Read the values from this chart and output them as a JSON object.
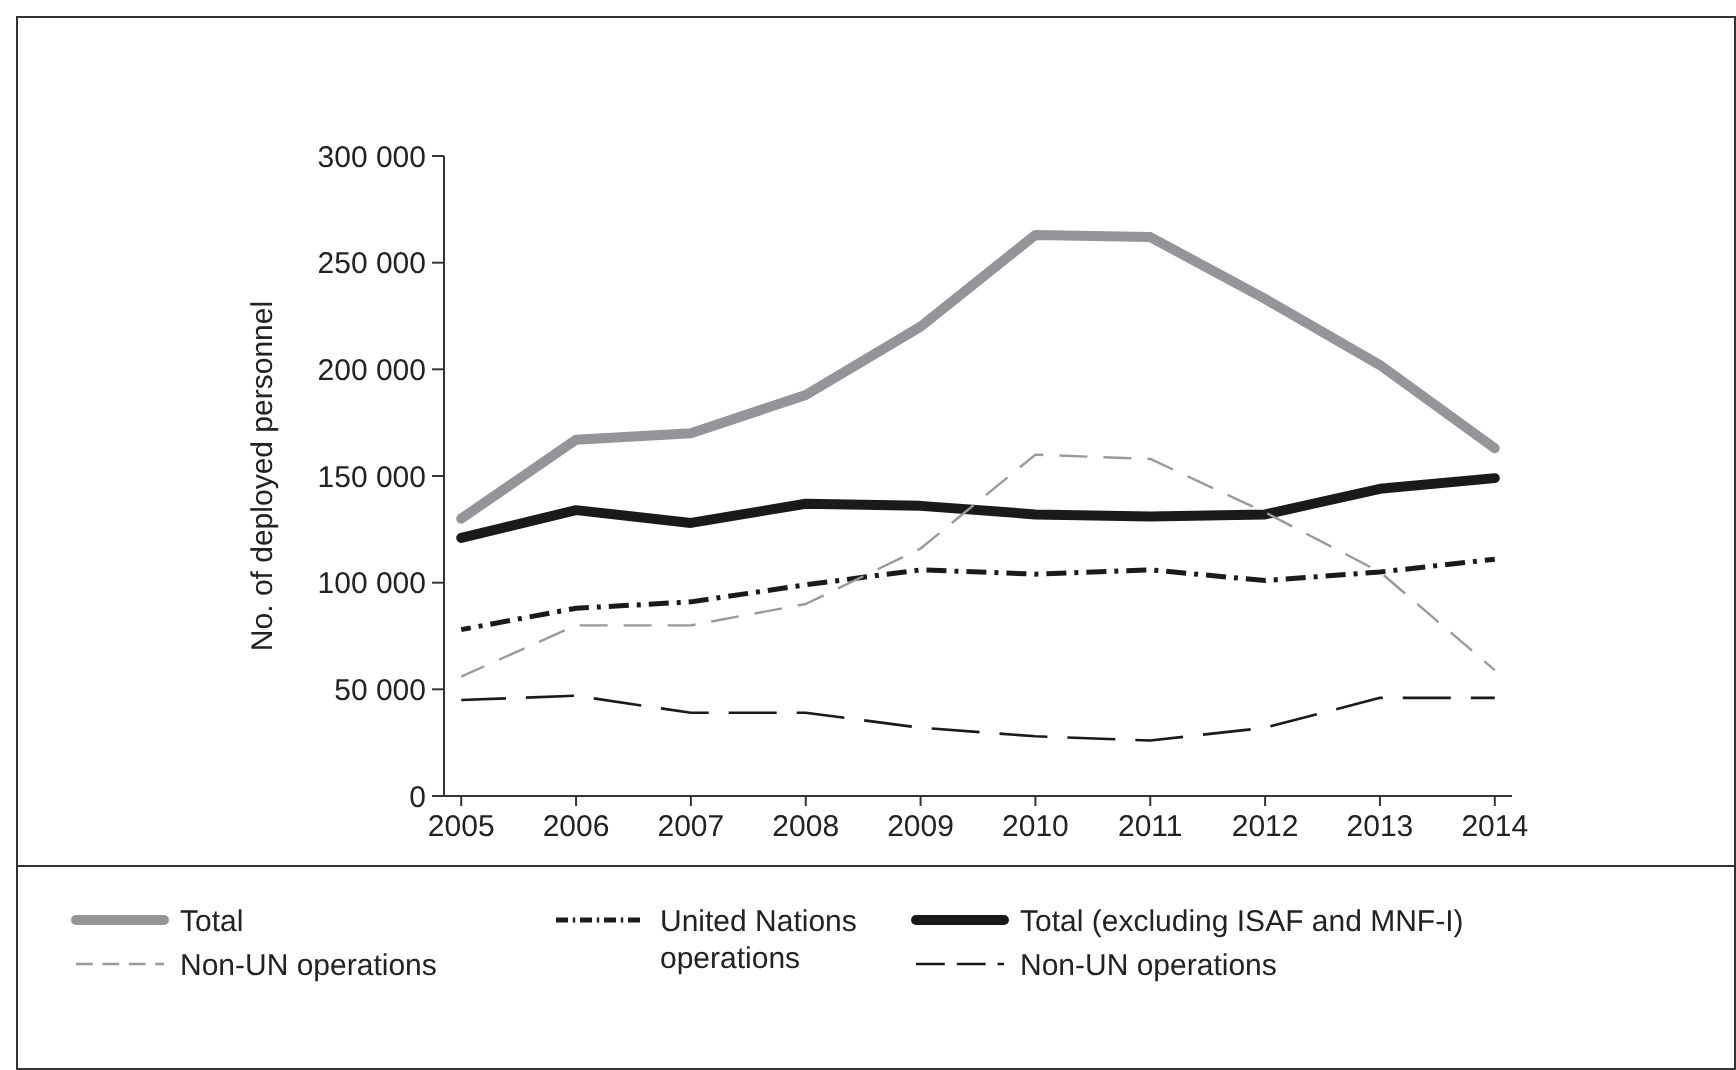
{
  "chart_data": {
    "type": "line",
    "ylabel": "No. of deployed personnel",
    "categories": [
      "2005",
      "2006",
      "2007",
      "2008",
      "2009",
      "2010",
      "2011",
      "2012",
      "2013",
      "2014"
    ],
    "ylim": [
      0,
      300000
    ],
    "yticks": [
      0,
      {
        "value": 50000,
        "label": "50 000"
      },
      {
        "value": 100000,
        "label": "100 000"
      },
      {
        "value": 150000,
        "label": "150 000"
      },
      {
        "value": 200000,
        "label": "200 000"
      },
      {
        "value": 250000,
        "label": "250 000"
      },
      {
        "value": 300000,
        "label": "300 000"
      }
    ],
    "grid": false,
    "legend": "bottom",
    "marker": "none",
    "series": [
      {
        "name": "Total",
        "color": "#939598",
        "line_style": "solid",
        "values": [
          130000,
          167000,
          170000,
          188000,
          220000,
          263000,
          262000,
          233000,
          202000,
          163000
        ]
      },
      {
        "name": "United Nations operations",
        "color": "#1a1a1a",
        "line_style": "dashdot",
        "values": [
          78000,
          88000,
          91000,
          99000,
          106000,
          104000,
          106000,
          101000,
          105000,
          111000
        ]
      },
      {
        "name": "Total (excluding ISAF and MNF-I)",
        "color": "#1a1a1a",
        "line_style": "solid",
        "values": [
          121000,
          134000,
          128000,
          137000,
          136000,
          132000,
          131000,
          132000,
          144000,
          149000
        ]
      },
      {
        "name": "Non-UN operations",
        "color": "#9a9a9a",
        "line_style": "dashed",
        "values": [
          56000,
          80000,
          80000,
          90000,
          116000,
          160000,
          158000,
          133000,
          105000,
          59000
        ]
      },
      {
        "name": "Non-UN operations",
        "color": "#1a1a1a",
        "line_style": "longdash",
        "values": [
          45000,
          47000,
          39000,
          39000,
          32000,
          28000,
          26000,
          32000,
          46000,
          46000
        ]
      }
    ]
  }
}
